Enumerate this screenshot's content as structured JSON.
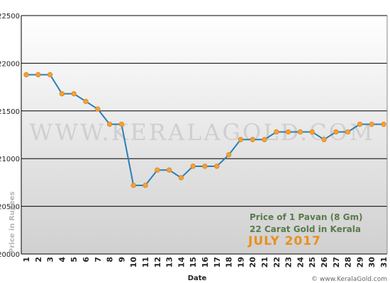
{
  "chart_data": {
    "type": "line",
    "x": [
      1,
      2,
      3,
      4,
      5,
      6,
      7,
      8,
      9,
      10,
      11,
      12,
      13,
      14,
      15,
      16,
      17,
      18,
      19,
      20,
      21,
      22,
      23,
      24,
      25,
      26,
      27,
      28,
      29,
      30,
      31
    ],
    "series": [
      {
        "values": [
          21880,
          21880,
          21880,
          21680,
          21680,
          21600,
          21520,
          21360,
          21360,
          20720,
          20720,
          20880,
          20880,
          20800,
          20920,
          20920,
          20920,
          21040,
          21200,
          21200,
          21200,
          21280,
          21280,
          21280,
          21280,
          21200,
          21280,
          21280,
          21360,
          21360,
          21360
        ]
      }
    ],
    "xticks": [
      "1",
      "2",
      "3",
      "4",
      "5",
      "6",
      "7",
      "8",
      "9",
      "10",
      "11",
      "12",
      "13",
      "14",
      "15",
      "16",
      "17",
      "18",
      "19",
      "20",
      "21",
      "22",
      "23",
      "24",
      "25",
      "26",
      "27",
      "28",
      "29",
      "30",
      "31"
    ],
    "yticks": [
      "20000",
      "20500",
      "21000",
      "21500",
      "22000",
      "22500"
    ],
    "ylim": [
      20000,
      22500
    ],
    "xlabel": "Date",
    "ylabel": "Price in Rupees",
    "grid": true,
    "annotations": {
      "line1": "Price of 1 Pavan (8 Gm)",
      "line2": "22 Carat Gold in Kerala",
      "line3": "JULY 2017"
    },
    "watermark": "WWW.KERALAGOLD.COM",
    "credit": "© www.KeralaGold.com",
    "colors": {
      "line": "#2b7fb3",
      "marker_fill": "#f4a233",
      "marker_stroke": "#e0892a",
      "gradient_top": "#ffffff",
      "gradient_bottom": "#d0d0d0",
      "annotation_green": "#5a7a4a",
      "annotation_orange": "#e8901c",
      "watermark": "#cfcfcf"
    }
  }
}
